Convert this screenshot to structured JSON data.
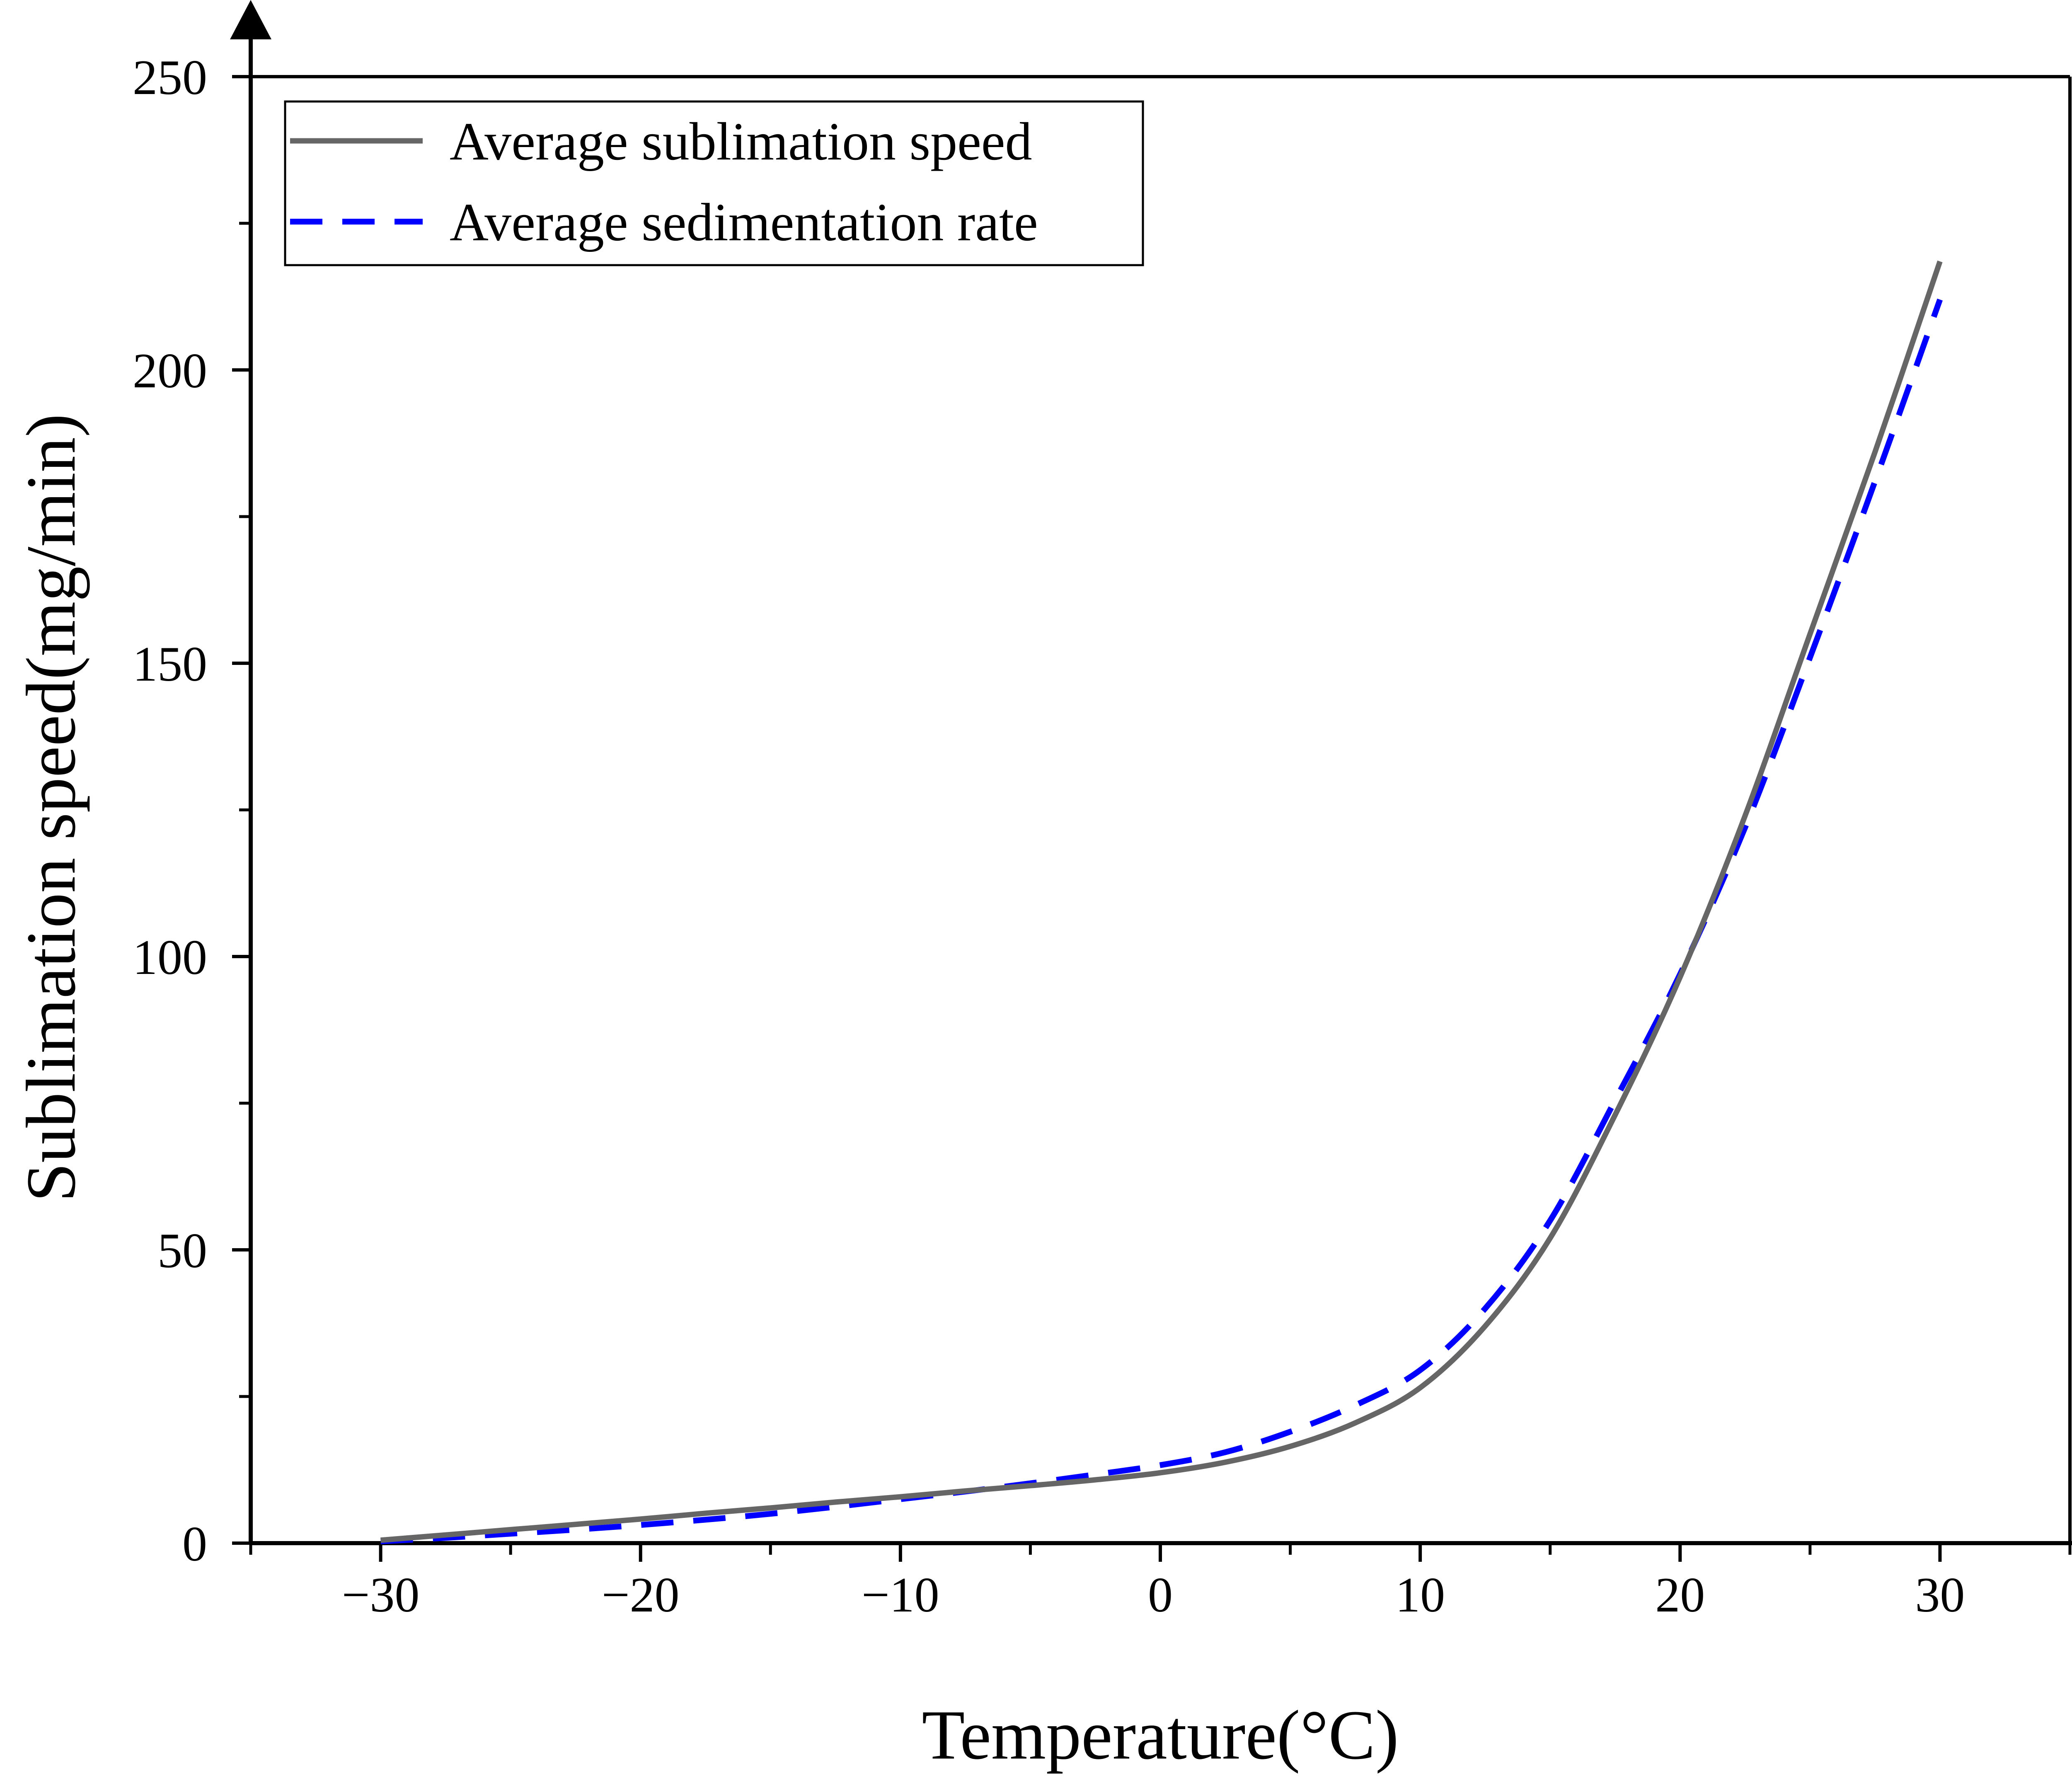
{
  "chart_data": {
    "type": "line",
    "title": "",
    "xlabel": "Temperature(°C)",
    "ylabel": "Sublimation speed(mg/min)",
    "xlim": [
      -35,
      35
    ],
    "ylim": [
      0,
      250
    ],
    "xticks": [
      -30,
      -20,
      -10,
      0,
      10,
      20,
      30
    ],
    "xtick_labels": [
      "−30",
      "−20",
      "−10",
      "0",
      "10",
      "20",
      "30"
    ],
    "yticks": [
      0,
      50,
      100,
      150,
      200,
      250
    ],
    "ytick_labels": [
      "0",
      "50",
      "100",
      "150",
      "200",
      "250"
    ],
    "x_minor_step": 5,
    "y_minor_step": 25,
    "grid": false,
    "legend_position": "top-left",
    "series": [
      {
        "name": "Average sublimation speed",
        "color": "#666666",
        "style": "solid",
        "x": [
          -30,
          -27.5,
          -25,
          -22.5,
          -20,
          -17.5,
          -15,
          -12.5,
          -10,
          -7.5,
          -5,
          -2.5,
          0,
          2.5,
          5,
          7.5,
          10,
          12.5,
          15,
          17.5,
          20,
          22.5,
          25,
          27.5,
          30
        ],
        "y": [
          0.5,
          1.4,
          2.3,
          3.2,
          4.1,
          5.1,
          6.0,
          7.0,
          7.9,
          8.9,
          9.8,
          10.8,
          12.0,
          13.8,
          16.5,
          20.5,
          26.5,
          37.0,
          52.0,
          73.0,
          96.5,
          124.0,
          155.0,
          186.0,
          218.5
        ]
      },
      {
        "name": "Average sedimentation rate",
        "color": "#0000ff",
        "style": "dashed",
        "x": [
          -30,
          -27.5,
          -25,
          -22.5,
          -20,
          -17.5,
          -15,
          -12.5,
          -10,
          -7.5,
          -5,
          -2.5,
          0,
          2.5,
          5,
          7.5,
          10,
          12.5,
          15,
          17.5,
          20,
          22.5,
          25,
          27.5,
          30
        ],
        "y": [
          0.3,
          0.9,
          1.6,
          2.3,
          3.1,
          4.0,
          5.0,
          6.2,
          7.5,
          8.8,
          10.2,
          11.7,
          13.3,
          15.5,
          19.0,
          23.5,
          29.5,
          40.0,
          55.0,
          75.5,
          97.0,
          122.0,
          151.0,
          181.0,
          212.0
        ]
      }
    ]
  }
}
